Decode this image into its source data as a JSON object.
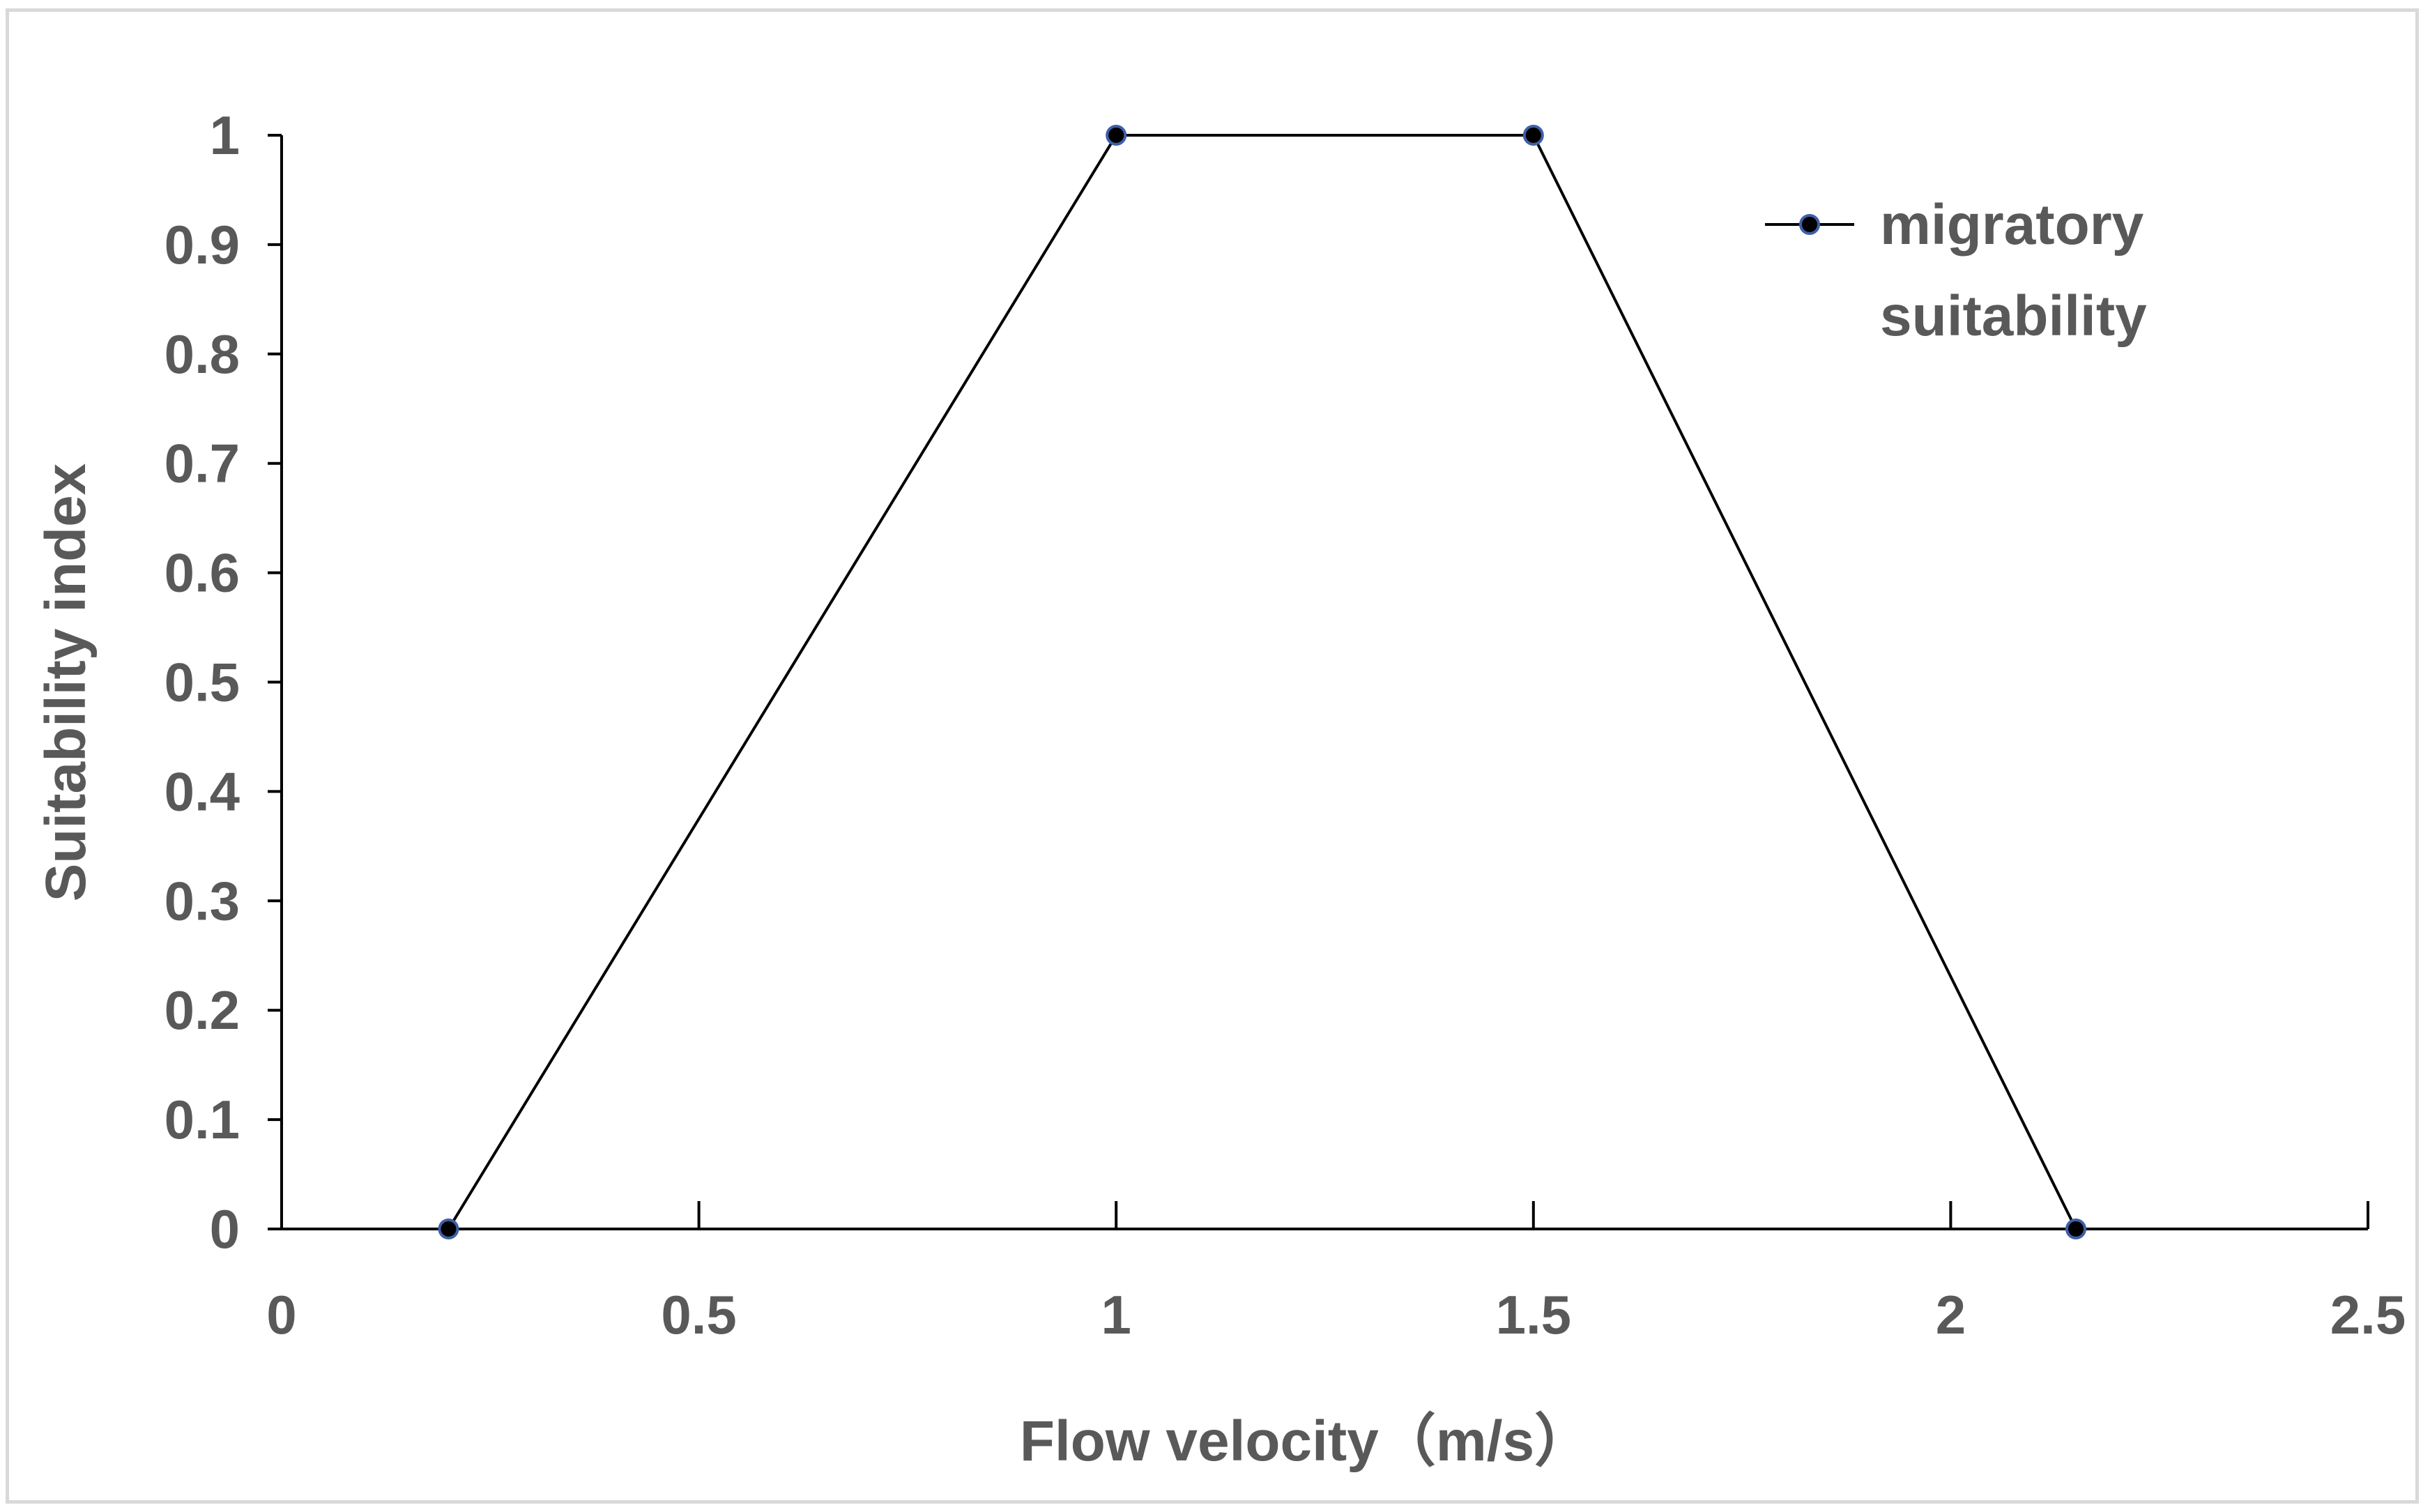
{
  "chart_data": {
    "type": "line",
    "x_axis": {
      "label": "Flow velocity（m/s）",
      "range": [
        0,
        2.5
      ],
      "ticks": [
        "0",
        "0.5",
        "1",
        "1.5",
        "2",
        "2.5"
      ]
    },
    "y_axis": {
      "label": "Suitability index",
      "range": [
        0,
        1
      ],
      "ticks": [
        "0",
        "0.1",
        "0.2",
        "0.3",
        "0.4",
        "0.5",
        "0.6",
        "0.7",
        "0.8",
        "0.9",
        "1"
      ]
    },
    "grid": false,
    "legend_position": "top-right",
    "series": [
      {
        "name_lines": [
          "migratory",
          "suitability"
        ],
        "color": "#000000",
        "marker_fill": "#000000",
        "marker_edge": "#3f5fa8",
        "points": [
          {
            "x": 0.2,
            "y": 0
          },
          {
            "x": 1.0,
            "y": 1
          },
          {
            "x": 1.5,
            "y": 1
          },
          {
            "x": 2.15,
            "y": 0
          }
        ]
      }
    ]
  }
}
